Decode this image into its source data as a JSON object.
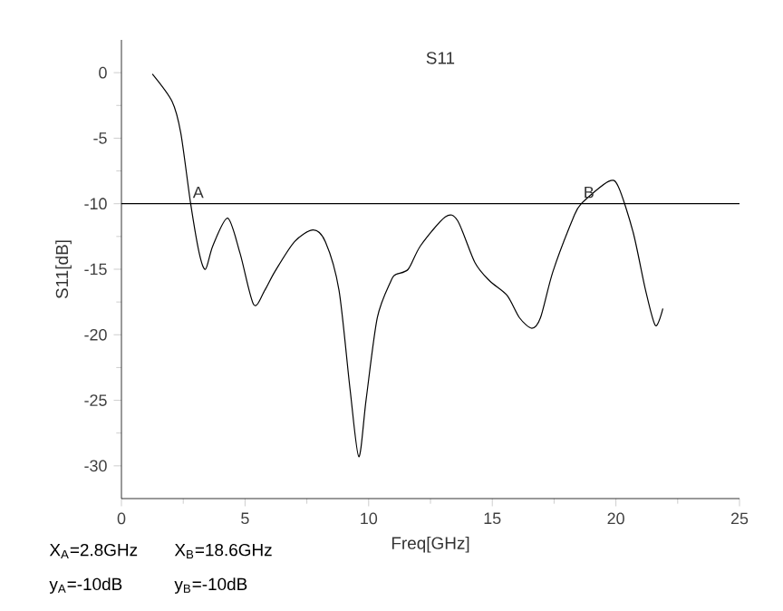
{
  "chart_data": {
    "type": "line",
    "title": "S11",
    "xlabel": "Freq[GHz]",
    "ylabel": "S11[dB]",
    "xlim": [
      0,
      25
    ],
    "ylim": [
      -32.5,
      2.5
    ],
    "xticks": [
      0,
      5,
      10,
      15,
      20,
      25
    ],
    "yticks": [
      0,
      -5,
      -10,
      -15,
      -20,
      -25,
      -30
    ],
    "grid": false,
    "legend": false,
    "marker": "none",
    "line_style": "solid",
    "series": [
      {
        "color": "#000000",
        "x": [
          1.25,
          2.05,
          2.4,
          2.8,
          3.15,
          3.4,
          3.7,
          4.3,
          4.8,
          5.35,
          5.8,
          6.2,
          7.0,
          7.75,
          8.25,
          8.8,
          9.25,
          9.6,
          9.9,
          10.35,
          10.9,
          11.1,
          11.6,
          12.1,
          13.1,
          13.6,
          14.3,
          14.9,
          15.6,
          16.1,
          16.6,
          16.95,
          17.45,
          18.25,
          18.6,
          19.7,
          20.1,
          20.7,
          21.2,
          21.6,
          21.9
        ],
        "values": [
          -0.1,
          -2.2,
          -4.6,
          -10,
          -13.8,
          -15,
          -13.2,
          -11.1,
          -13.8,
          -17.7,
          -16.6,
          -15.2,
          -12.9,
          -12.0,
          -12.9,
          -16.6,
          -24.2,
          -29.3,
          -24.9,
          -18.7,
          -15.9,
          -15.4,
          -15.0,
          -13.2,
          -11.0,
          -11.3,
          -14.5,
          -15.9,
          -17.0,
          -18.7,
          -19.5,
          -18.7,
          -15.2,
          -11.2,
          -10,
          -8.3,
          -8.7,
          -12.2,
          -16.6,
          -19.3,
          -18.0
        ]
      }
    ],
    "ref_lines": [
      {
        "axis": "y",
        "value": -10,
        "color": "#000000",
        "line_style": "solid"
      }
    ],
    "annotations": [
      {
        "text": "A",
        "x": 2.8,
        "y": -10
      },
      {
        "text": "B",
        "x": 18.6,
        "y": -10
      },
      "X$_{A}$=2.8GHz",
      "X$_{B}$=18.6GHz",
      "y$_{A}$=-10dB",
      "y$_{B}$=-10dB"
    ]
  }
}
